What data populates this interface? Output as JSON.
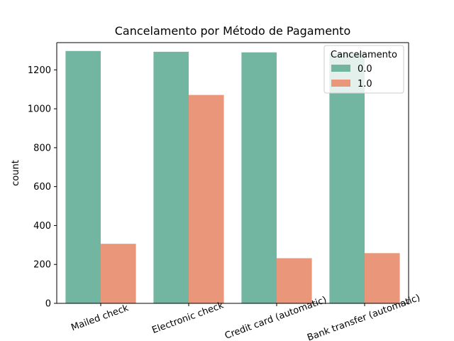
{
  "chart_data": {
    "type": "bar",
    "title": "Cancelamento por Método de Pagamento",
    "xlabel": "",
    "ylabel": "count",
    "categories": [
      "Mailed check",
      "Electronic check",
      "Credit card (automatic)",
      "Bank transfer (automatic)"
    ],
    "series": [
      {
        "name": "0.0",
        "color": "#72b6a1",
        "values": [
          1297,
          1293,
          1290,
          1285
        ]
      },
      {
        "name": "1.0",
        "color": "#e9967a",
        "values": [
          306,
          1071,
          232,
          258
        ]
      }
    ],
    "ylim": [
      0,
      1340
    ],
    "yticks": [
      0,
      200,
      400,
      600,
      800,
      1000,
      1200
    ],
    "grid": false,
    "legend": {
      "title": "Cancelamento",
      "placement": "top-right"
    },
    "xtick_rotation": "-20deg"
  }
}
